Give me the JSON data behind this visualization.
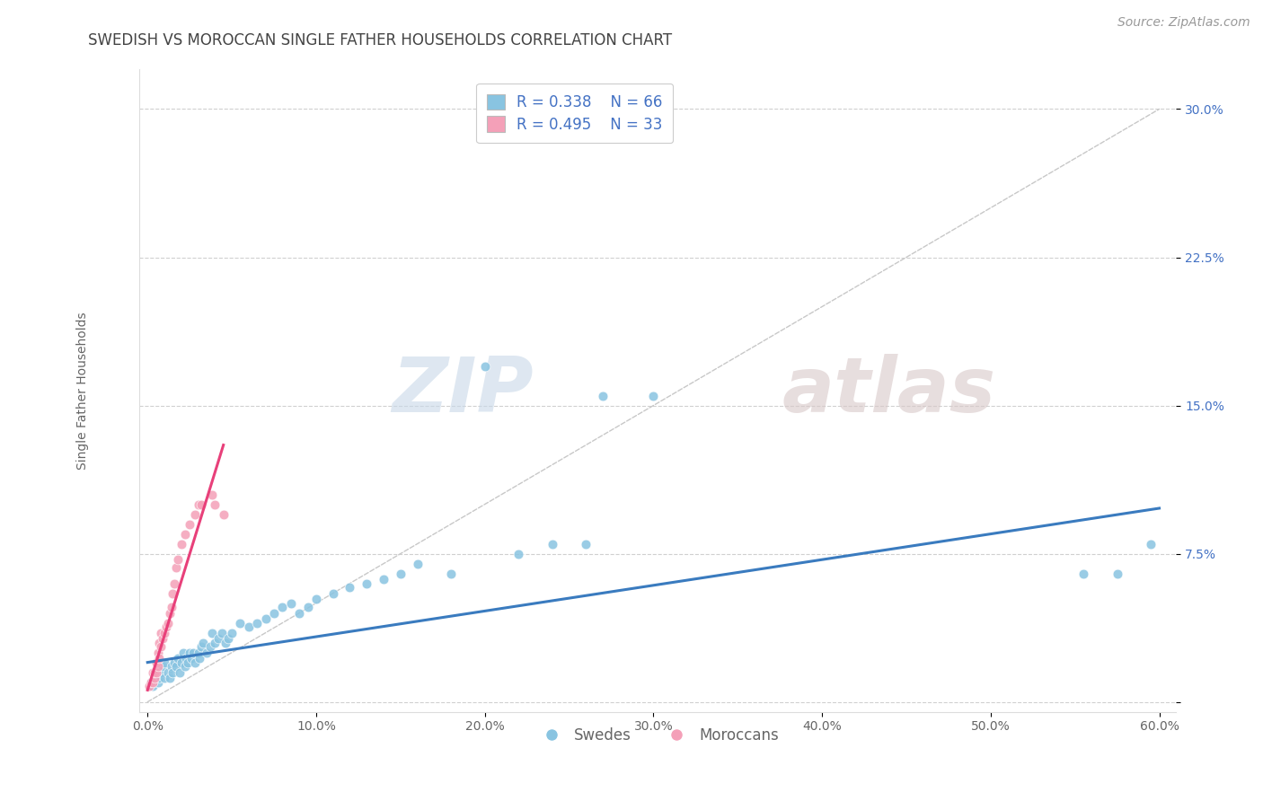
{
  "title": "SWEDISH VS MOROCCAN SINGLE FATHER HOUSEHOLDS CORRELATION CHART",
  "source": "Source: ZipAtlas.com",
  "ylabel": "Single Father Households",
  "xlabel": "",
  "xlim": [
    -0.005,
    0.61
  ],
  "ylim": [
    -0.005,
    0.32
  ],
  "xticks": [
    0.0,
    0.1,
    0.2,
    0.3,
    0.4,
    0.5,
    0.6
  ],
  "xticklabels": [
    "0.0%",
    "10.0%",
    "20.0%",
    "30.0%",
    "40.0%",
    "50.0%",
    "60.0%"
  ],
  "yticks": [
    0.0,
    0.075,
    0.15,
    0.225,
    0.3
  ],
  "yticklabels": [
    "",
    "7.5%",
    "15.0%",
    "22.5%",
    "30.0%"
  ],
  "blue_color": "#89c4e1",
  "pink_color": "#f4a0b8",
  "trend_blue": "#3a7bbf",
  "trend_pink": "#e8407a",
  "diag_color": "#c8c8c8",
  "legend_blue_r": "R = 0.338",
  "legend_blue_n": "N = 66",
  "legend_pink_r": "R = 0.495",
  "legend_pink_n": "N = 33",
  "watermark_zip": "ZIP",
  "watermark_atlas": "atlas",
  "swedes_label": "Swedes",
  "moroccans_label": "Moroccans",
  "blue_scatter_x": [
    0.002,
    0.003,
    0.004,
    0.005,
    0.006,
    0.007,
    0.008,
    0.009,
    0.01,
    0.01,
    0.012,
    0.013,
    0.014,
    0.015,
    0.016,
    0.017,
    0.018,
    0.019,
    0.02,
    0.021,
    0.022,
    0.023,
    0.024,
    0.025,
    0.026,
    0.027,
    0.028,
    0.03,
    0.031,
    0.032,
    0.033,
    0.035,
    0.037,
    0.038,
    0.04,
    0.042,
    0.044,
    0.046,
    0.048,
    0.05,
    0.055,
    0.06,
    0.065,
    0.07,
    0.075,
    0.08,
    0.085,
    0.09,
    0.095,
    0.1,
    0.11,
    0.12,
    0.13,
    0.14,
    0.15,
    0.16,
    0.18,
    0.2,
    0.22,
    0.24,
    0.26,
    0.3,
    0.27,
    0.555,
    0.575,
    0.595
  ],
  "blue_scatter_y": [
    0.01,
    0.008,
    0.012,
    0.015,
    0.01,
    0.012,
    0.015,
    0.018,
    0.012,
    0.02,
    0.015,
    0.012,
    0.018,
    0.015,
    0.02,
    0.018,
    0.022,
    0.015,
    0.02,
    0.025,
    0.018,
    0.022,
    0.02,
    0.025,
    0.022,
    0.025,
    0.02,
    0.025,
    0.022,
    0.028,
    0.03,
    0.025,
    0.028,
    0.035,
    0.03,
    0.032,
    0.035,
    0.03,
    0.032,
    0.035,
    0.04,
    0.038,
    0.04,
    0.042,
    0.045,
    0.048,
    0.05,
    0.045,
    0.048,
    0.052,
    0.055,
    0.058,
    0.06,
    0.062,
    0.065,
    0.07,
    0.065,
    0.17,
    0.075,
    0.08,
    0.08,
    0.155,
    0.155,
    0.065,
    0.065,
    0.08
  ],
  "pink_scatter_x": [
    0.001,
    0.002,
    0.003,
    0.003,
    0.004,
    0.004,
    0.005,
    0.005,
    0.006,
    0.006,
    0.007,
    0.007,
    0.008,
    0.008,
    0.009,
    0.01,
    0.011,
    0.012,
    0.013,
    0.014,
    0.015,
    0.016,
    0.017,
    0.018,
    0.02,
    0.022,
    0.025,
    0.028,
    0.03,
    0.032,
    0.038,
    0.04,
    0.045
  ],
  "pink_scatter_y": [
    0.008,
    0.01,
    0.01,
    0.015,
    0.012,
    0.015,
    0.015,
    0.02,
    0.018,
    0.025,
    0.022,
    0.03,
    0.028,
    0.035,
    0.032,
    0.035,
    0.038,
    0.04,
    0.045,
    0.048,
    0.055,
    0.06,
    0.068,
    0.072,
    0.08,
    0.085,
    0.09,
    0.095,
    0.1,
    0.1,
    0.105,
    0.1,
    0.095
  ],
  "title_fontsize": 12,
  "source_fontsize": 10,
  "axis_label_fontsize": 10,
  "tick_fontsize": 10,
  "legend_fontsize": 12,
  "blue_trend_x0": 0.0,
  "blue_trend_x1": 0.6,
  "blue_trend_y0": 0.02,
  "blue_trend_y1": 0.098,
  "pink_trend_x0": 0.0,
  "pink_trend_x1": 0.045,
  "pink_trend_y0": 0.006,
  "pink_trend_y1": 0.13
}
